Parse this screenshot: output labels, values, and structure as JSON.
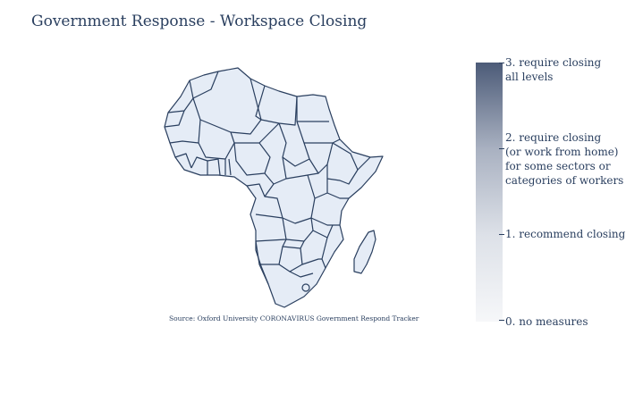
{
  "figure": {
    "title": "Government Response - Workspace Closing",
    "source_note": "Source:  Oxford University CORONAVIRUS Government Respond Tracker"
  },
  "map": {
    "region": "Africa",
    "fill_color": "#e5ecf6",
    "border_color": "#2a3f5f"
  },
  "colorbar": {
    "min": 0,
    "max": 3,
    "colors": [
      "#f6f7f9",
      "#dde1e8",
      "#a9b1c1",
      "#4c5b78"
    ],
    "ticks": [
      {
        "value": 3,
        "label": "3. require closing\nall levels"
      },
      {
        "value": 2,
        "label": "2. require closing\n (or work from home)\n for some sectors or\ncategories of workers"
      },
      {
        "value": 1,
        "label": "1. recommend closing"
      },
      {
        "value": 0,
        "label": "0. no measures"
      }
    ]
  }
}
